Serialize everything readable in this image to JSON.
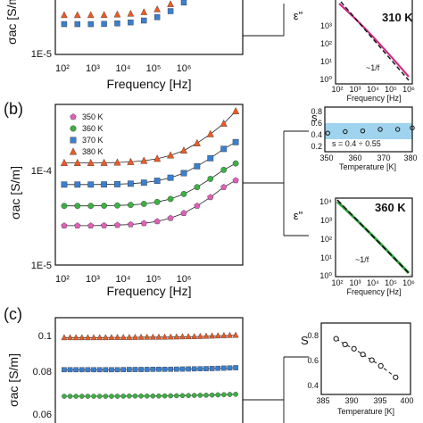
{
  "panels": {
    "a": {
      "ylabel": "σac [S/m]",
      "xlabel": "Frequency [Hz]",
      "ytick_bottom": "1E-5",
      "xticks": [
        "10²",
        "10³",
        "10⁴",
        "10⁵",
        "10⁶"
      ],
      "inset": {
        "ylabel": "ε\"",
        "xlabel": "Frequency [Hz]",
        "temp_label": "310 K",
        "temp_color": "#cc2f86",
        "annotation": "~1/f",
        "yticks": [
          "10⁰",
          "10¹",
          "10²",
          "10³"
        ],
        "xticks": [
          "10²",
          "10³",
          "10⁴",
          "10⁵",
          "10⁶"
        ]
      }
    },
    "b": {
      "panel_label": "(b)",
      "ylabel": "σac [S/m]",
      "xlabel": "Frequency [Hz]",
      "yticks": [
        "1E-4",
        "1E-5"
      ],
      "xticks": [
        "10²",
        "10³",
        "10⁴",
        "10⁵",
        "10⁶"
      ],
      "legend": [
        "350 K",
        "360 K",
        "370 K",
        "380 K"
      ],
      "inset_s": {
        "ylabel": "s",
        "xlabel": "Temperature [K]",
        "annotation": "s = 0.4 ÷ 0.55",
        "yticks": [
          "0.8",
          "0.6",
          "0.4",
          "0.2"
        ],
        "xticks": [
          "350",
          "360",
          "370",
          "380"
        ]
      },
      "inset_eps": {
        "ylabel": "ε\"",
        "xlabel": "Frequency [Hz]",
        "temp_label": "360 K",
        "temp_color": "#2aa33a",
        "annotation": "~1/f",
        "yticks": [
          "10⁴",
          "10³",
          "10²",
          "10¹",
          "10⁰"
        ],
        "xticks": [
          "10²",
          "10³",
          "10⁴",
          "10⁵",
          "10⁶"
        ]
      }
    },
    "c": {
      "panel_label": "(c)",
      "ylabel": "σac [S/m]",
      "yticks": [
        "0.1",
        "0.08",
        "0.06"
      ],
      "inset_s": {
        "ylabel": "S",
        "xlabel": "Temperature [K]",
        "yticks": [
          "0.8",
          "0.6",
          "0.4"
        ],
        "xticks": [
          "385",
          "390",
          "395",
          "400"
        ]
      }
    }
  },
  "colors": {
    "350K": "#e060b8",
    "360K": "#3cb043",
    "370K": "#3a7fd0",
    "380K": "#ee5a24",
    "band": "#9fd3ee"
  },
  "chart_data": [
    {
      "type": "scatter",
      "panel": "a",
      "xlabel": "Frequency [Hz]",
      "x_scale": "log",
      "xlim": [
        60,
        3000000
      ],
      "series": [
        {
          "color": "#ee5a24",
          "x": [
            100,
            215,
            464,
            1000,
            2150,
            4640,
            10000,
            21500,
            46400,
            100000,
            215000,
            464000,
            1000000
          ],
          "y": [
            2.3e-05,
            2.3e-05,
            2.3e-05,
            2.31e-05,
            2.33e-05,
            2.37e-05,
            2.45e-05,
            2.6e-05,
            2.9e-05,
            3.4e-05,
            4.2e-05,
            5.4e-05,
            7e-05
          ]
        },
        {
          "color": "#3a7fd0",
          "x": [
            100,
            215,
            464,
            1000,
            2150,
            4640,
            10000,
            21500,
            46400,
            100000,
            215000,
            464000,
            1000000
          ],
          "y": [
            1.9e-05,
            1.9e-05,
            1.9e-05,
            1.91e-05,
            1.93e-05,
            1.97e-05,
            2.05e-05,
            2.2e-05,
            2.5e-05,
            3e-05,
            3.8e-05,
            5e-05,
            6.6e-05
          ]
        }
      ]
    },
    {
      "type": "line",
      "panel": "a-inset",
      "x_scale": "log",
      "y_scale": "log",
      "xlim": [
        100,
        1000000
      ],
      "ylim": [
        1,
        1000
      ],
      "x": [
        100,
        1000,
        10000,
        100000,
        1000000
      ],
      "y": [
        800,
        160,
        30,
        6,
        1.3
      ]
    },
    {
      "type": "scatter",
      "panel": "b",
      "xlabel": "Frequency [Hz]",
      "ylabel": "σac [S/m]",
      "x_scale": "log",
      "y_scale": "log",
      "xlim": [
        60,
        3000000
      ],
      "ylim": [
        1e-05,
        0.0003
      ],
      "series": [
        {
          "name": "350 K",
          "color": "#e060b8",
          "x": [
            100,
            215,
            464,
            1000,
            2150,
            4640,
            10000,
            21500,
            46400,
            100000,
            215000,
            464000,
            1000000,
            2000000
          ],
          "y": [
            2.3e-05,
            2.3e-05,
            2.3e-05,
            2.31e-05,
            2.33e-05,
            2.36e-05,
            2.42e-05,
            2.52e-05,
            2.7e-05,
            3e-05,
            3.5e-05,
            4.2e-05,
            5.2e-05,
            6e-05
          ]
        },
        {
          "name": "360 K",
          "color": "#3cb043",
          "x": [
            100,
            215,
            464,
            1000,
            2150,
            4640,
            10000,
            21500,
            46400,
            100000,
            215000,
            464000,
            1000000,
            2000000
          ],
          "y": [
            3.5e-05,
            3.5e-05,
            3.5e-05,
            3.51e-05,
            3.53e-05,
            3.57e-05,
            3.65e-05,
            3.8e-05,
            4.05e-05,
            4.5e-05,
            5.2e-05,
            6.2e-05,
            7.5e-05,
            8.6e-05
          ]
        },
        {
          "name": "370 K",
          "color": "#3a7fd0",
          "x": [
            100,
            215,
            464,
            1000,
            2150,
            4640,
            10000,
            21500,
            46400,
            100000,
            215000,
            464000,
            1000000,
            2000000
          ],
          "y": [
            5.5e-05,
            5.5e-05,
            5.5e-05,
            5.51e-05,
            5.54e-05,
            5.6e-05,
            5.72e-05,
            5.95e-05,
            6.35e-05,
            7e-05,
            8.1e-05,
            9.6e-05,
            0.000117,
            0.000135
          ]
        },
        {
          "name": "380 K",
          "color": "#ee5a24",
          "x": [
            100,
            215,
            464,
            1000,
            2150,
            4640,
            10000,
            21500,
            46400,
            100000,
            215000,
            464000,
            1000000,
            2000000
          ],
          "y": [
            8.7e-05,
            8.7e-05,
            8.7e-05,
            8.72e-05,
            8.77e-05,
            8.88e-05,
            9.1e-05,
            9.5e-05,
            0.000102,
            0.000113,
            0.000132,
            0.00016,
            0.0002,
            0.00026
          ]
        }
      ]
    },
    {
      "type": "scatter",
      "panel": "b-inset-s",
      "xlabel": "Temperature [K]",
      "ylabel": "s",
      "xlim": [
        350,
        380
      ],
      "ylim": [
        0.2,
        0.8
      ],
      "band": [
        0.4,
        0.55
      ],
      "x": [
        351,
        357,
        363,
        369,
        375,
        380
      ],
      "y": [
        0.45,
        0.47,
        0.48,
        0.5,
        0.5,
        0.52
      ]
    },
    {
      "type": "line",
      "panel": "b-inset-eps",
      "x_scale": "log",
      "y_scale": "log",
      "xlim": [
        100,
        1000000
      ],
      "ylim": [
        1,
        10000
      ],
      "x": [
        100,
        1000,
        10000,
        100000,
        1000000
      ],
      "y": [
        5000,
        700,
        90,
        12,
        1.6
      ]
    },
    {
      "type": "scatter",
      "panel": "c",
      "ylabel": "σac [S/m]",
      "x_scale": "log",
      "xlim": [
        60,
        3000000
      ],
      "ylim": [
        0.055,
        0.105
      ],
      "series": [
        {
          "color": "#ee5a24",
          "x": [
            100,
            215,
            464,
            1000,
            2150,
            4640,
            10000,
            21500,
            46400,
            100000,
            215000,
            464000,
            1000000,
            2000000
          ],
          "y": [
            0.096,
            0.096,
            0.096,
            0.096,
            0.0961,
            0.0961,
            0.0962,
            0.0962,
            0.0963,
            0.0964,
            0.0965,
            0.0967,
            0.0969,
            0.0971
          ]
        },
        {
          "color": "#3a7fd0",
          "x": [
            100,
            215,
            464,
            1000,
            2150,
            4640,
            10000,
            21500,
            46400,
            100000,
            215000,
            464000,
            1000000,
            2000000
          ],
          "y": [
            0.0815,
            0.0815,
            0.0815,
            0.0815,
            0.0815,
            0.0816,
            0.0816,
            0.0817,
            0.0817,
            0.0818,
            0.0819,
            0.082,
            0.0822,
            0.0824
          ]
        },
        {
          "color": "#3cb043",
          "x": [
            100,
            215,
            464,
            1000,
            2150,
            4640,
            10000,
            21500,
            46400,
            100000,
            215000,
            464000,
            1000000,
            2000000
          ],
          "y": [
            0.0695,
            0.0695,
            0.0695,
            0.0695,
            0.0695,
            0.0696,
            0.0696,
            0.0696,
            0.0697,
            0.0698,
            0.0699,
            0.07,
            0.0702,
            0.0704
          ]
        }
      ]
    },
    {
      "type": "scatter",
      "panel": "c-inset-s",
      "xlabel": "Temperature [K]",
      "ylabel": "S",
      "xlim": [
        385,
        400
      ],
      "ylim": [
        0.4,
        0.9
      ],
      "x": [
        387.5,
        389,
        390.5,
        392,
        393.5,
        395,
        397.5
      ],
      "y": [
        0.79,
        0.75,
        0.72,
        0.68,
        0.64,
        0.6,
        0.52
      ]
    }
  ]
}
